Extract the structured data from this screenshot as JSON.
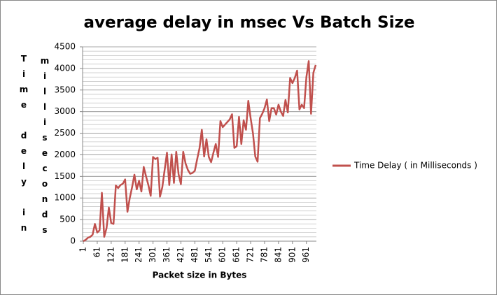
{
  "chart_data": {
    "type": "line",
    "title": "average delay in msec Vs Batch Size",
    "x_label": "Packet size in Bytes",
    "y_label": [
      "Time dely in",
      "milliseconds"
    ],
    "categories": [
      "1",
      null,
      null,
      null,
      null,
      null,
      "61",
      null,
      null,
      null,
      null,
      null,
      "121",
      null,
      null,
      null,
      null,
      null,
      "181",
      null,
      null,
      null,
      null,
      null,
      "241",
      null,
      null,
      null,
      null,
      null,
      "301",
      null,
      null,
      null,
      null,
      null,
      "361",
      null,
      null,
      null,
      null,
      null,
      "421",
      null,
      null,
      null,
      null,
      null,
      "481",
      null,
      null,
      null,
      null,
      null,
      "541",
      null,
      null,
      null,
      null,
      null,
      "601",
      null,
      null,
      null,
      null,
      null,
      "661",
      null,
      null,
      null,
      null,
      null,
      "721",
      null,
      null,
      null,
      null,
      null,
      "781",
      null,
      null,
      null,
      null,
      null,
      "841",
      null,
      null,
      null,
      null,
      null,
      "901",
      null,
      null,
      null,
      null,
      null,
      "961",
      null,
      null,
      null,
      null
    ],
    "series": [
      {
        "name": "Time Delay ( in Milliseconds )",
        "color": "#c0504d",
        "values": [
          0,
          30,
          80,
          100,
          150,
          400,
          200,
          250,
          1120,
          100,
          300,
          780,
          420,
          400,
          1290,
          1230,
          1300,
          1330,
          1430,
          680,
          1000,
          1250,
          1540,
          1200,
          1400,
          1150,
          1720,
          1500,
          1300,
          1050,
          1950,
          1900,
          1930,
          1030,
          1250,
          1650,
          2050,
          1300,
          2010,
          1350,
          2070,
          1550,
          1320,
          2070,
          1800,
          1650,
          1560,
          1580,
          1630,
          1900,
          2150,
          2580,
          1960,
          2360,
          1950,
          1830,
          2050,
          2250,
          1950,
          2780,
          2640,
          2700,
          2760,
          2820,
          2940,
          2160,
          2200,
          2880,
          2250,
          2800,
          2580,
          3250,
          2850,
          2500,
          1960,
          1840,
          2850,
          2950,
          3080,
          3280,
          2780,
          3080,
          3080,
          2930,
          3160,
          3000,
          2900,
          3270,
          2980,
          3780,
          3660,
          3780,
          3950,
          3050,
          3160,
          3080,
          3800,
          4170,
          2950,
          3900,
          4080
        ]
      }
    ],
    "ylim": [
      0,
      4500
    ],
    "yticks": [
      0,
      500,
      1000,
      1500,
      2000,
      2500,
      3000,
      3500,
      4000,
      4500
    ],
    "minor_grid_interval": 100,
    "grid": true,
    "legend": "right"
  }
}
